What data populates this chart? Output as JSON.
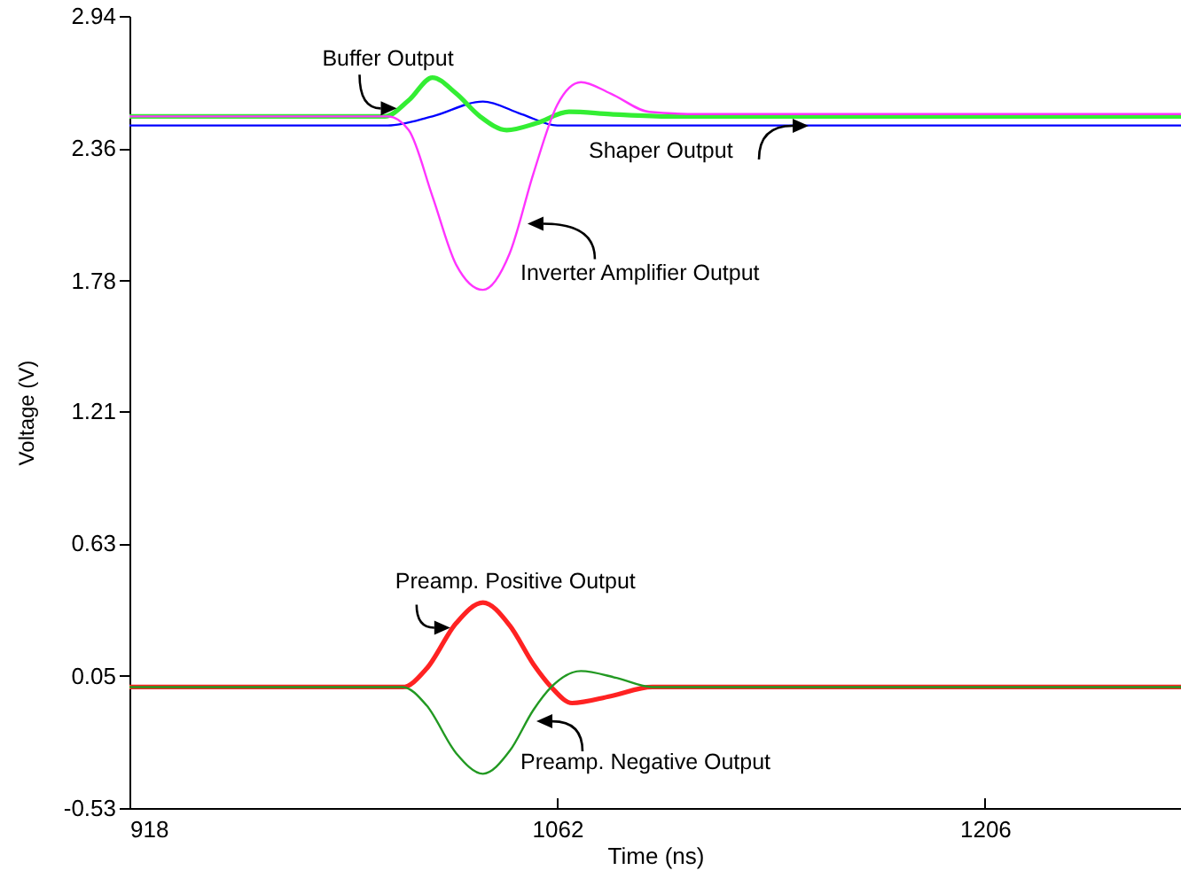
{
  "chart_data": {
    "type": "line",
    "xlabel": "Time (ns)",
    "ylabel": "Voltage (V)",
    "xlim": [
      918,
      1272
    ],
    "xticks": [
      918,
      1062,
      1206
    ],
    "ylim": [
      -0.53,
      2.94
    ],
    "yticks": [
      -0.53,
      0.05,
      0.63,
      1.21,
      1.78,
      2.36,
      2.94
    ],
    "grid": false,
    "series": [
      {
        "color": "#0000ff",
        "x": [
          918,
          1005,
          1020,
          1037,
          1050,
          1062,
          1272
        ],
        "values": [
          2.46,
          2.46,
          2.5,
          2.565,
          2.51,
          2.46,
          2.46
        ]
      },
      {
        "color": "#33ee33",
        "x": [
          918,
          1004,
          1012,
          1020,
          1028,
          1036,
          1045,
          1055,
          1066,
          1080,
          1100,
          1272
        ],
        "values": [
          2.5,
          2.5,
          2.57,
          2.67,
          2.6,
          2.5,
          2.44,
          2.47,
          2.52,
          2.51,
          2.5,
          2.5
        ]
      },
      {
        "color": "#ff33ff",
        "x": [
          918,
          1005,
          1012,
          1020,
          1028,
          1037,
          1046,
          1054,
          1062,
          1070,
          1080,
          1093,
          1110,
          1272
        ],
        "values": [
          2.5,
          2.5,
          2.44,
          2.15,
          1.85,
          1.74,
          1.9,
          2.25,
          2.55,
          2.65,
          2.6,
          2.52,
          2.51,
          2.51
        ]
      },
      {
        "color": "#ff2222",
        "x": [
          918,
          1010,
          1018,
          1028,
          1037,
          1046,
          1054,
          1060,
          1067,
          1080,
          1094,
          1272
        ],
        "values": [
          0.0,
          0.0,
          0.08,
          0.28,
          0.37,
          0.27,
          0.1,
          0.0,
          -0.07,
          -0.04,
          0.0,
          0.0
        ]
      },
      {
        "color": "#229922",
        "x": [
          918,
          1010,
          1018,
          1028,
          1037,
          1046,
          1054,
          1060,
          1070,
          1082,
          1094,
          1272
        ],
        "values": [
          0.0,
          0.0,
          -0.08,
          -0.29,
          -0.38,
          -0.28,
          -0.1,
          0.0,
          0.07,
          0.04,
          0.0,
          0.0
        ]
      }
    ],
    "annotations": [
      {
        "text": "Buffer Output",
        "x": 1008,
        "y": 2.535
      },
      {
        "text": "Inverter Amplifier Output",
        "x": 1052,
        "y": 2.03
      },
      "Shaper Output",
      {
        "text": "Preamp. Positive Output",
        "x": 1026,
        "y": 0.26
      },
      {
        "text": "Preamp. Negative Output",
        "x": 1055,
        "y": -0.15
      }
    ]
  }
}
